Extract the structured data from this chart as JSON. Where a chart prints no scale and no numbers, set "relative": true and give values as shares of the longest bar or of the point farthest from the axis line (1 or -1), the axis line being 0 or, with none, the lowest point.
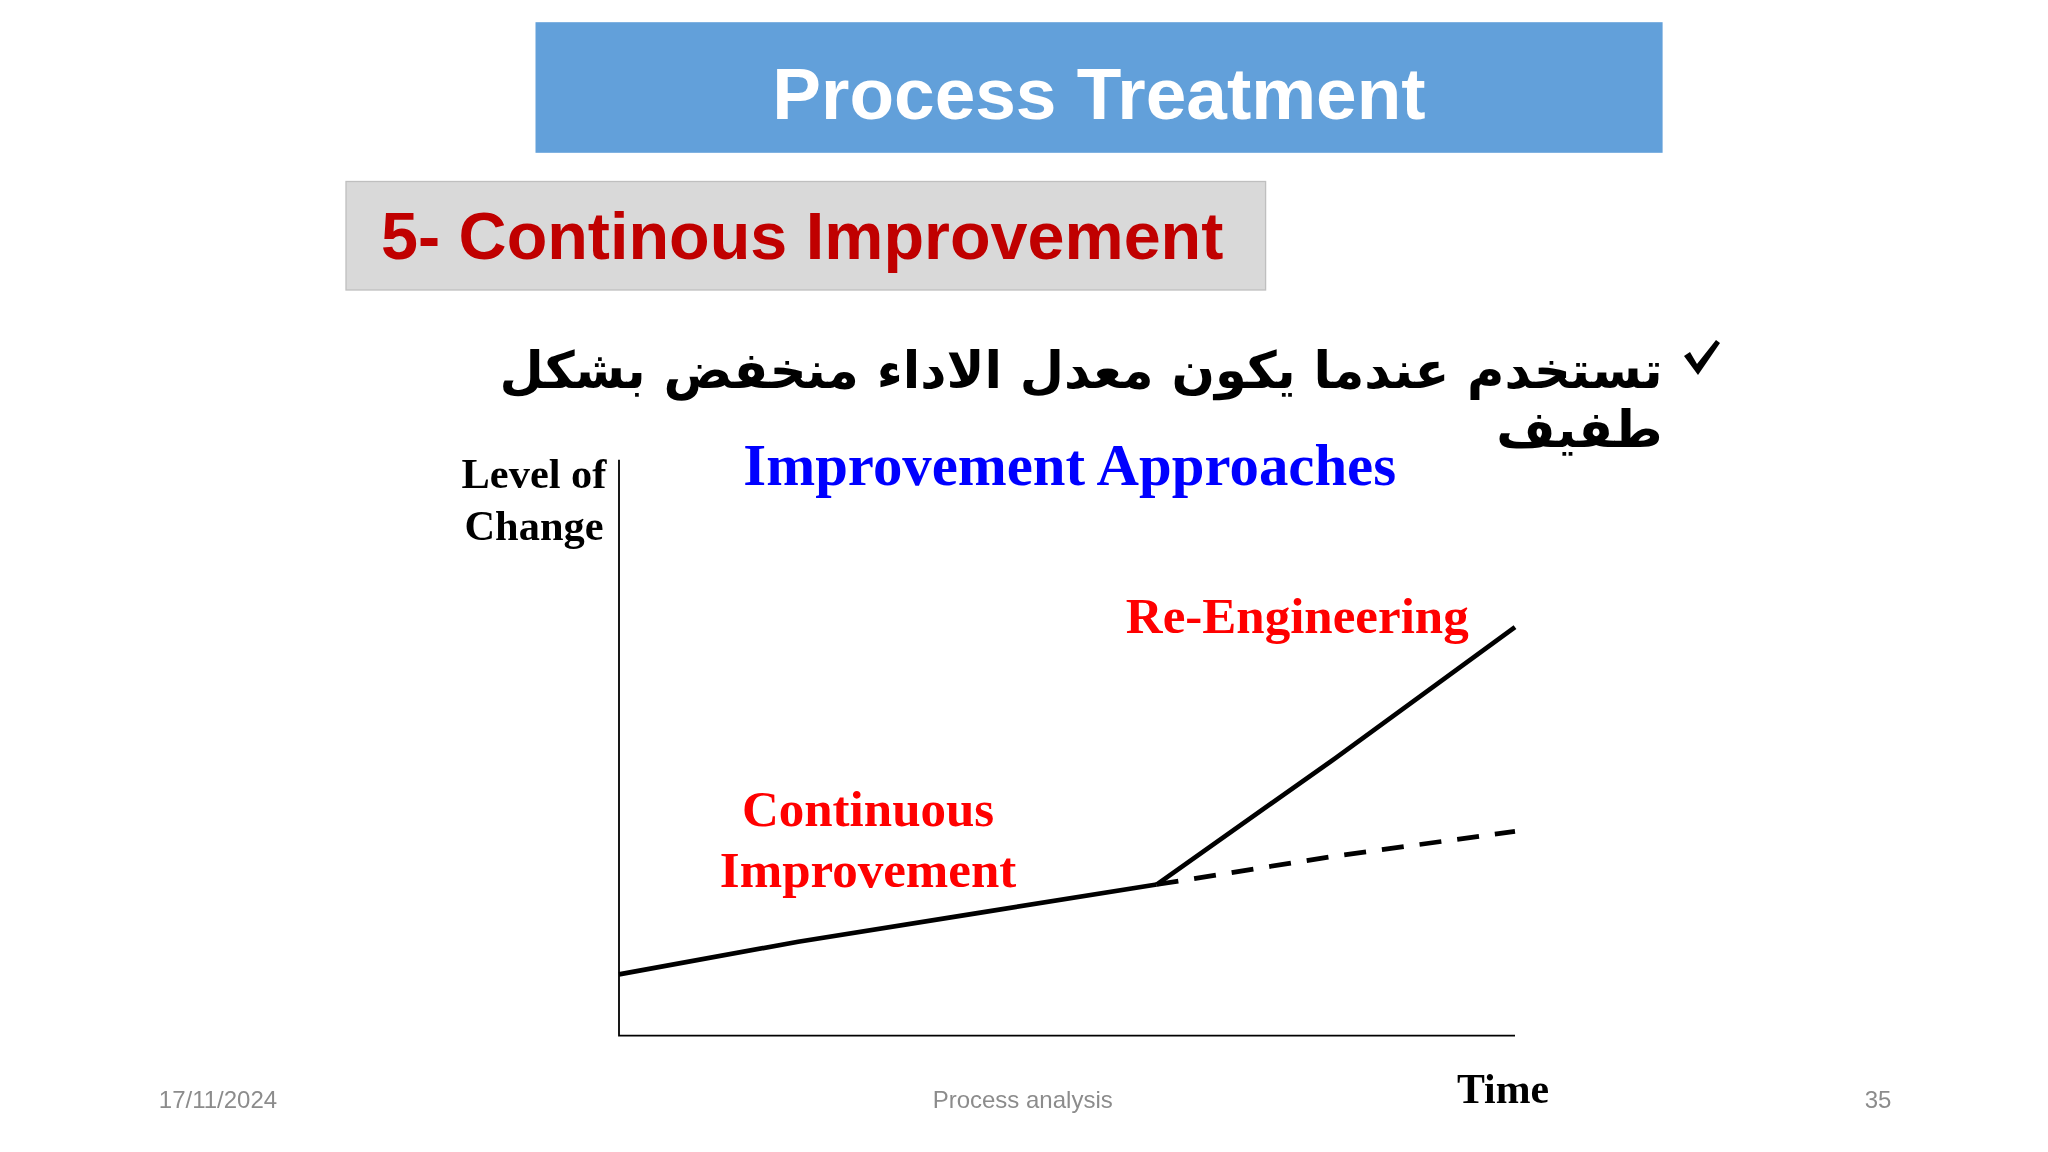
{
  "chart_data": {
    "type": "line",
    "title": "Improvement Approaches",
    "xlabel": "Time",
    "ylabel": "Level of Change",
    "relative": true,
    "categories": [
      null,
      null,
      null,
      null,
      null,
      null
    ],
    "series": [
      {
        "name": "Continuous Improvement",
        "color": "#000000",
        "values": [
          0.15,
          0.23,
          0.3,
          0.37,
          null,
          null
        ]
      },
      {
        "name": "Re-Engineering",
        "color": "#000000",
        "values": [
          null,
          null,
          null,
          0.37,
          0.68,
          1
        ]
      },
      {
        "color": "#000000",
        "line_style": "dashed",
        "values": [
          null,
          null,
          null,
          0.37,
          0.44,
          0.5
        ]
      }
    ],
    "annotations": [
      "Process Treatment",
      "5- Continous Improvement",
      "تستخدم عندما يكون معدل الاداء منخفض بشكل طفيف",
      "17/11/2024",
      "Process analysis",
      "35"
    ]
  }
}
